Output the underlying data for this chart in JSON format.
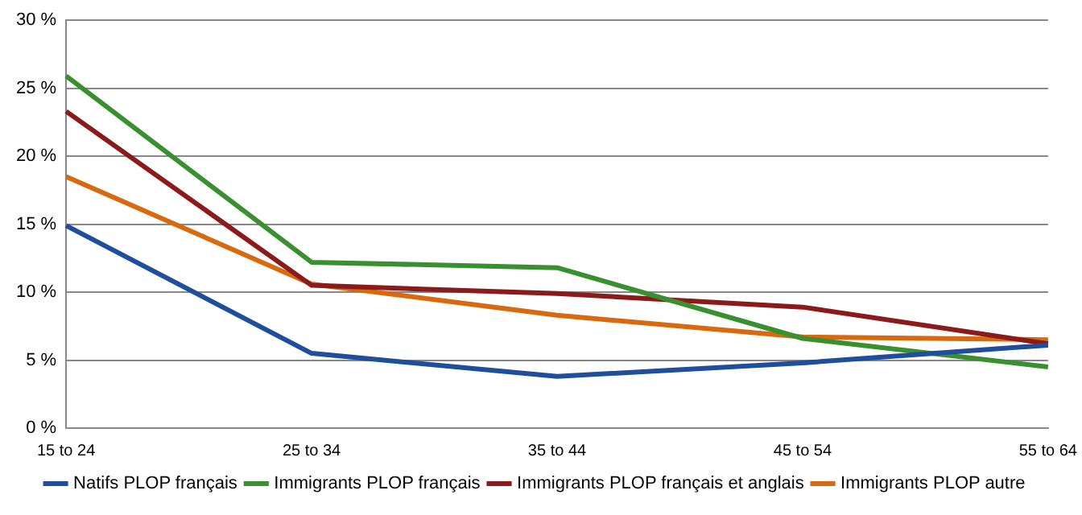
{
  "chart_data": {
    "type": "line",
    "categories": [
      "15 to 24",
      "25 to 34",
      "35 to 44",
      "45 to 54",
      "55 to 64"
    ],
    "series": [
      {
        "name": "Natifs PLOP français",
        "color": "#1f4e9c",
        "values": [
          14.9,
          5.5,
          3.8,
          4.8,
          6.1
        ]
      },
      {
        "name": "Immigrants PLOP français",
        "color": "#3a9030",
        "values": [
          25.9,
          12.2,
          11.8,
          6.6,
          4.5
        ]
      },
      {
        "name": "Immigrants PLOP français et anglais",
        "color": "#8b1a1a",
        "values": [
          23.3,
          10.5,
          9.9,
          8.9,
          6.2
        ]
      },
      {
        "name": "Immigrants PLOP autre",
        "color": "#d8690f",
        "values": [
          18.5,
          10.6,
          8.3,
          6.7,
          6.5
        ]
      }
    ],
    "ylim": [
      0,
      30
    ],
    "yticks": [
      {
        "value": 0,
        "label": "0 %"
      },
      {
        "value": 5,
        "label": "5 %"
      },
      {
        "value": 10,
        "label": "10 %"
      },
      {
        "value": 15,
        "label": "15 %"
      },
      {
        "value": 20,
        "label": "20 %"
      },
      {
        "value": 25,
        "label": "25 %"
      },
      {
        "value": 30,
        "label": "30 %"
      }
    ],
    "grid": "y",
    "legend": "bottom",
    "marker": "none",
    "line_style": "solid"
  }
}
